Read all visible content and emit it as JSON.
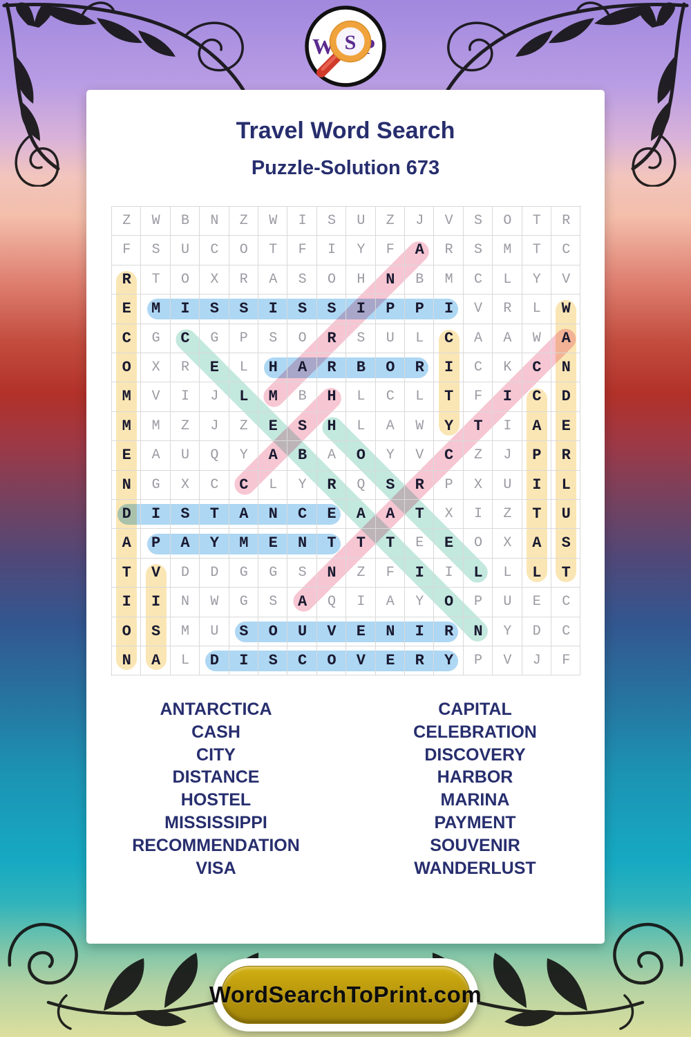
{
  "header": {
    "title": "Travel Word Search",
    "subtitle": "Puzzle-Solution 673"
  },
  "logo": {
    "left_letter": "W",
    "lens_letter": "S",
    "right_letter": "P"
  },
  "grid": {
    "rows": [
      "ZWBNZWISUZJVSOTR",
      "FSUCOTFIYFARSMTC",
      "RTOXRASOHNBMCLYV",
      "EMISSISSIPPIVRLW",
      "CGCGPSORSULCAAWA",
      "OXRELHARBORICKCN",
      "MVIJLMBHLCLTFICD",
      "MMZJZESHLAWYTIAE",
      "EAUQYABAOYVCZJPR",
      "NGXCCLYRQSRPXUIL",
      "DISTANCEAATXIZTU",
      "APAYMENTTTEEOXAS",
      "TVDDGGSNZFIILLLT",
      "IINWGSAQIAYOPUEC",
      "OSMUSOUVENIRNYDC",
      "NALDISCOVERYPVJF"
    ]
  },
  "solutions": [
    {
      "word": "RECOMMENDATION",
      "row": 3,
      "col": 1,
      "dir": "S",
      "color": "yellow"
    },
    {
      "word": "VISA",
      "row": 13,
      "col": 2,
      "dir": "S",
      "color": "yellow"
    },
    {
      "word": "CITY",
      "row": 5,
      "col": 12,
      "dir": "S",
      "color": "yellow"
    },
    {
      "word": "CAPITAL",
      "row": 7,
      "col": 15,
      "dir": "S",
      "color": "yellow"
    },
    {
      "word": "WANDERLUST",
      "row": 4,
      "col": 16,
      "dir": "S",
      "color": "yellow"
    },
    {
      "word": "MISSISSIPPI",
      "row": 4,
      "col": 2,
      "dir": "E",
      "color": "blue"
    },
    {
      "word": "HARBOR",
      "row": 6,
      "col": 6,
      "dir": "E",
      "color": "blue"
    },
    {
      "word": "DISTANCE",
      "row": 11,
      "col": 1,
      "dir": "E",
      "color": "blue"
    },
    {
      "word": "PAYMENT",
      "row": 12,
      "col": 2,
      "dir": "E",
      "color": "blue"
    },
    {
      "word": "SOUVENIR",
      "row": 15,
      "col": 5,
      "dir": "E",
      "color": "blue"
    },
    {
      "word": "DISCOVERY",
      "row": 16,
      "col": 4,
      "dir": "E",
      "color": "blue"
    },
    {
      "word": "CASH",
      "row": 10,
      "col": 5,
      "dir": "NE",
      "color": "pink"
    },
    {
      "word": "MARINA",
      "row": 7,
      "col": 6,
      "dir": "NE",
      "color": "pink"
    },
    {
      "word": "ANTARCTICA",
      "row": 14,
      "col": 7,
      "dir": "NE",
      "color": "pink"
    },
    {
      "word": "CELEBRATION",
      "row": 5,
      "col": 3,
      "dir": "SE",
      "color": "teal"
    },
    {
      "word": "HOSTEL",
      "row": 8,
      "col": 8,
      "dir": "SE",
      "color": "teal"
    }
  ],
  "word_list": {
    "left": [
      "ANTARCTICA",
      "CASH",
      "CITY",
      "DISTANCE",
      "HOSTEL",
      "MISSISSIPPI",
      "RECOMMENDATION",
      "VISA"
    ],
    "right": [
      "CAPITAL",
      "CELEBRATION",
      "DISCOVERY",
      "HARBOR",
      "MARINA",
      "PAYMENT",
      "SOUVENIR",
      "WANDERLUST"
    ]
  },
  "footer": {
    "site_label": "WordSearchToPrint.com"
  },
  "colors": {
    "highlight_blue": "#aed7f3",
    "highlight_yellow": "#fae6b4",
    "highlight_pink": "#f7c6d3",
    "highlight_teal": "#c3e8de",
    "title_navy": "#272e6e",
    "letter_gray": "#9a9aa2",
    "letter_dark": "#191930",
    "button_gold": "#b5940b"
  }
}
